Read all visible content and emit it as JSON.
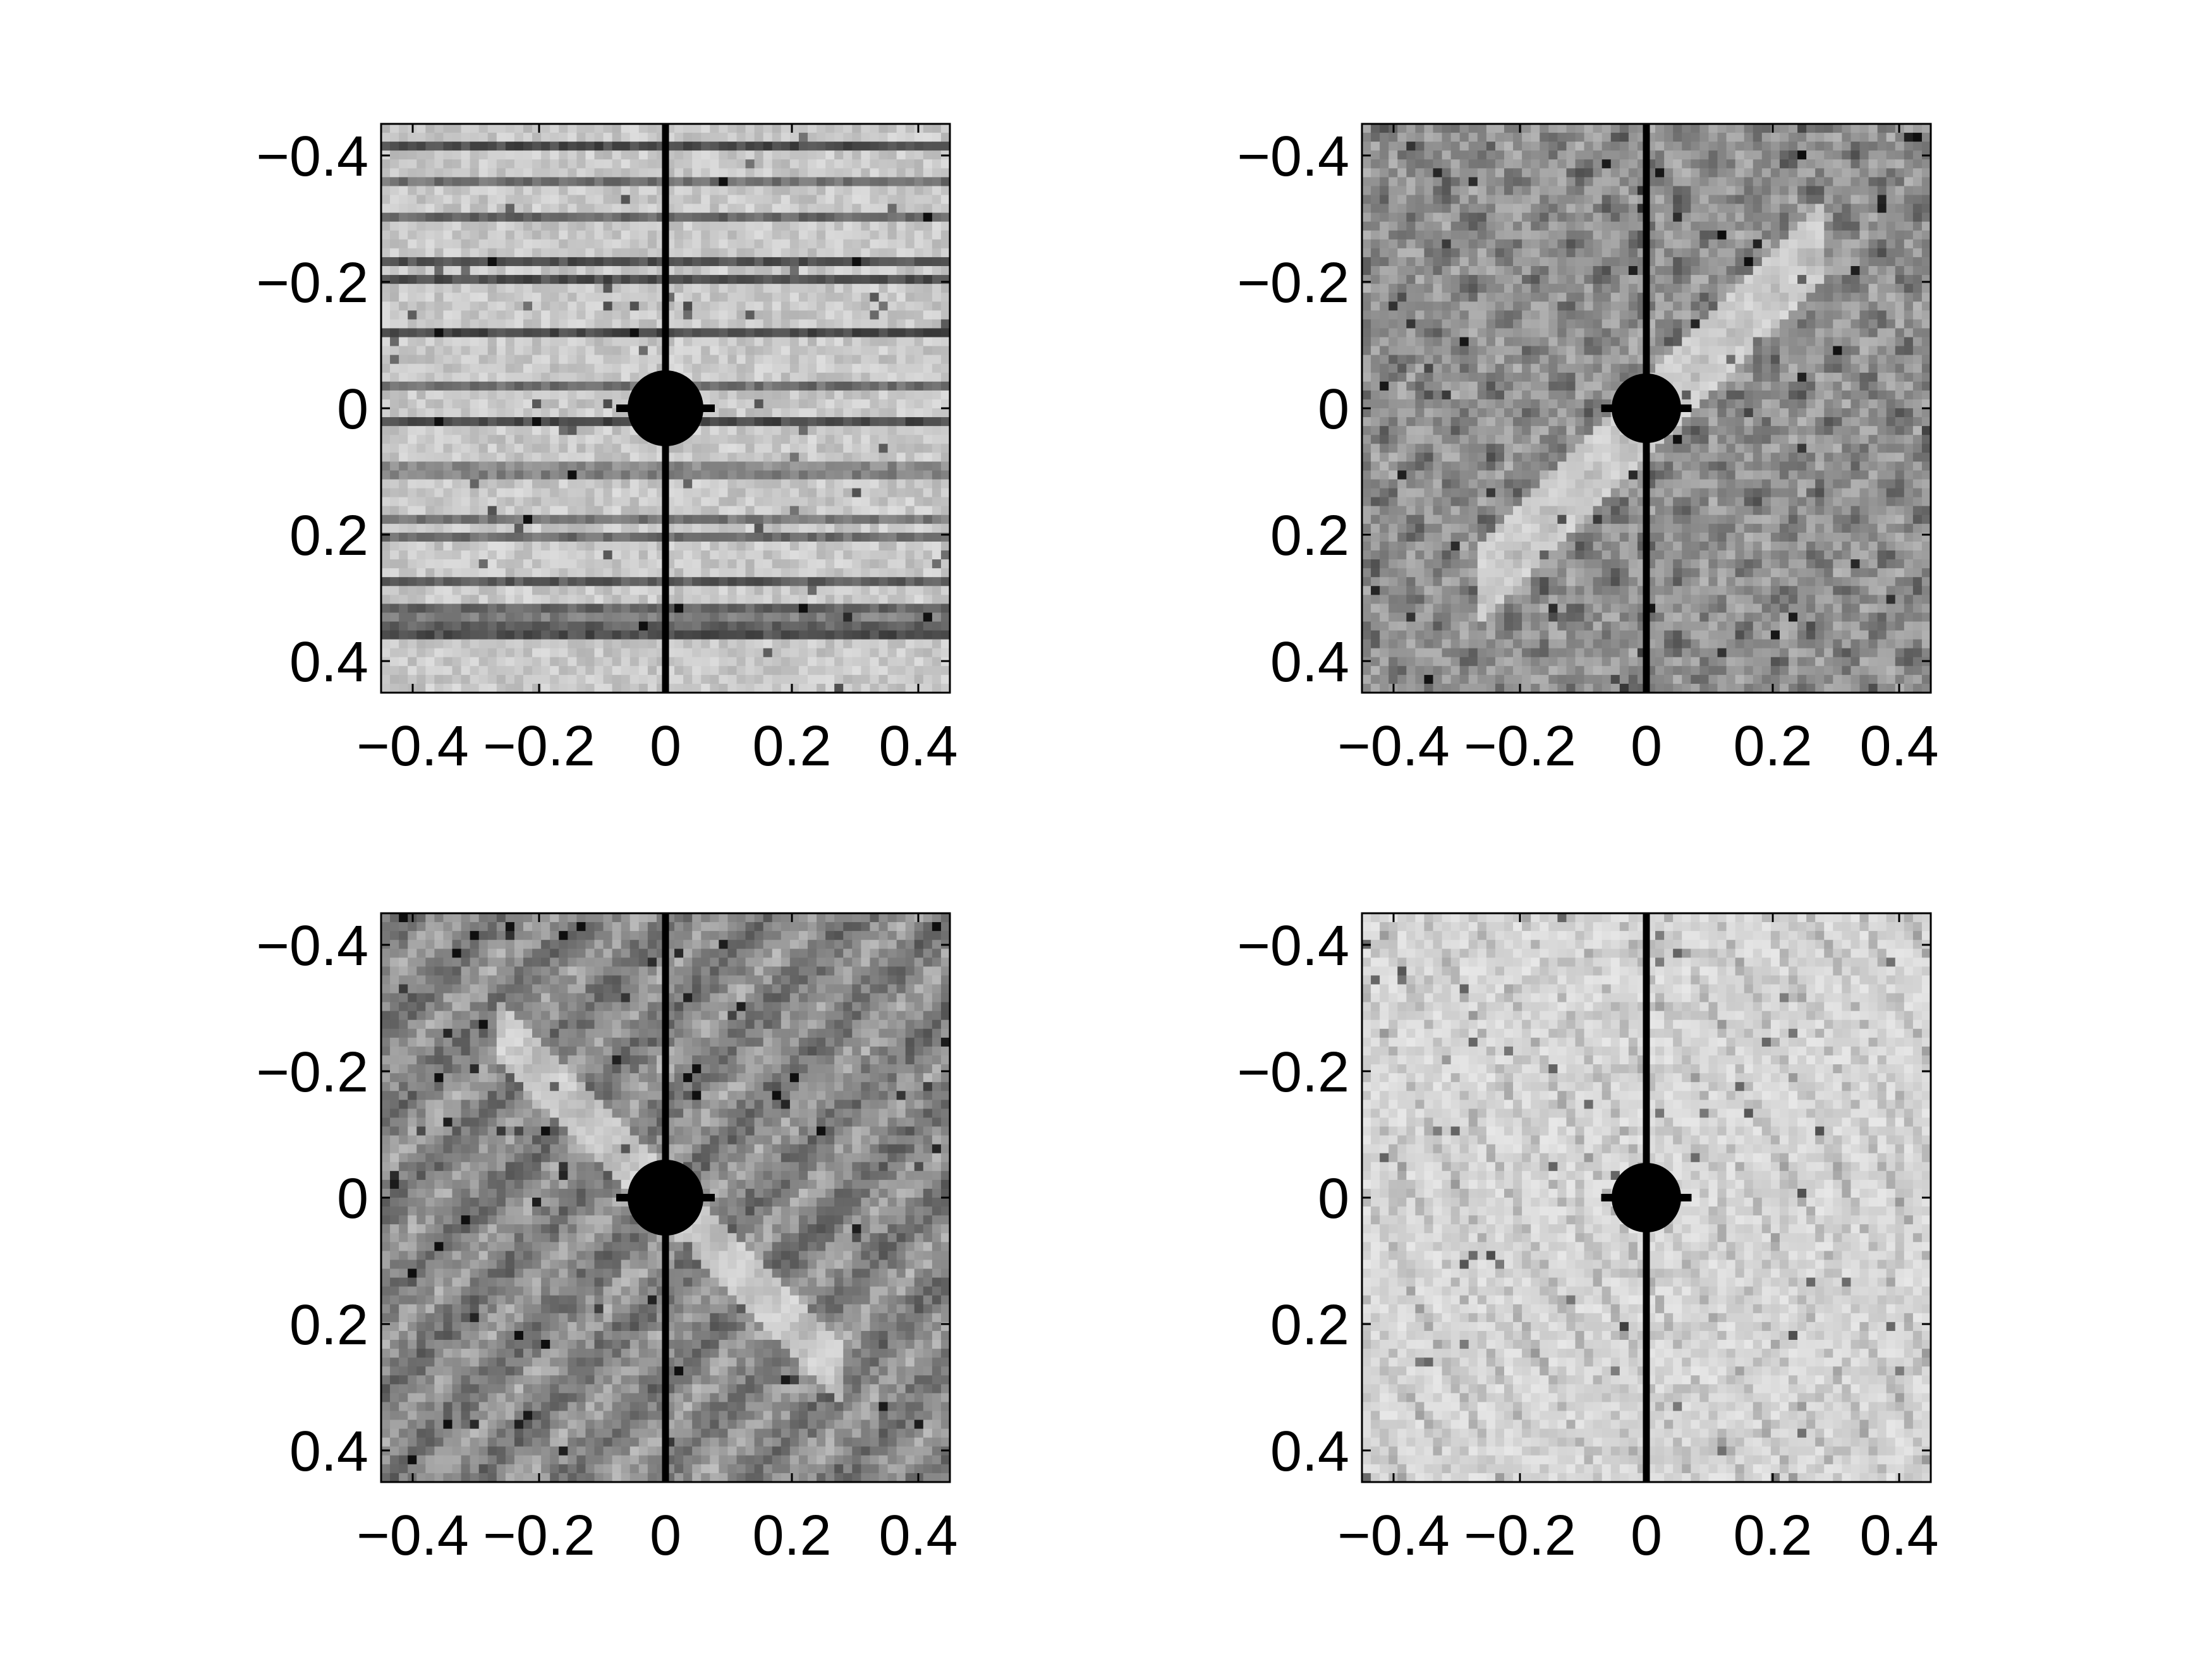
{
  "chart_data": [
    {
      "type": "heatmap",
      "colormap": "grayscale (light = low, dark = high)",
      "xlim": [
        -0.45,
        0.45
      ],
      "ylim": [
        -0.45,
        0.45
      ],
      "y_axis_direction": "reversed (negative at top)",
      "xticks": [
        -0.4,
        -0.2,
        0,
        0.2,
        0.4
      ],
      "yticks": [
        -0.4,
        -0.2,
        0,
        0.2,
        0.4
      ],
      "xtick_labels": [
        "−0.4",
        "−0.2",
        "0",
        "0.2",
        "0.4"
      ],
      "ytick_labels": [
        "−0.4",
        "−0.2",
        "0",
        "0.2",
        "0.4"
      ],
      "features": {
        "texture": "horizontal streaks",
        "central_disk_radius": 0.06,
        "vertical_line_at_x": 0
      }
    },
    {
      "type": "heatmap",
      "colormap": "grayscale (light = low, dark = high)",
      "xlim": [
        -0.45,
        0.45
      ],
      "ylim": [
        -0.45,
        0.45
      ],
      "y_axis_direction": "reversed (negative at top)",
      "xticks": [
        -0.4,
        -0.2,
        0,
        0.2,
        0.4
      ],
      "yticks": [
        -0.4,
        -0.2,
        0,
        0.2,
        0.4
      ],
      "xtick_labels": [
        "−0.4",
        "−0.2",
        "0",
        "0.2",
        "0.4"
      ],
      "ytick_labels": [
        "−0.4",
        "−0.2",
        "0",
        "0.2",
        "0.4"
      ],
      "features": {
        "texture": "diagonal crosshatch",
        "central_disk_radius": 0.055,
        "vertical_line_at_x": 0
      }
    },
    {
      "type": "heatmap",
      "colormap": "grayscale (light = low, dark = high)",
      "xlim": [
        -0.45,
        0.45
      ],
      "ylim": [
        -0.45,
        0.45
      ],
      "y_axis_direction": "reversed (negative at top)",
      "xticks": [
        -0.4,
        -0.2,
        0,
        0.2,
        0.4
      ],
      "yticks": [
        -0.4,
        -0.2,
        0,
        0.2,
        0.4
      ],
      "xtick_labels": [
        "−0.4",
        "−0.2",
        "0",
        "0.2",
        "0.4"
      ],
      "ytick_labels": [
        "−0.4",
        "−0.2",
        "0",
        "0.2",
        "0.4"
      ],
      "features": {
        "texture": "diagonal stripes",
        "central_disk_radius": 0.06,
        "vertical_line_at_x": 0
      }
    },
    {
      "type": "heatmap",
      "colormap": "grayscale (light = low, dark = high)",
      "xlim": [
        -0.45,
        0.45
      ],
      "ylim": [
        -0.45,
        0.45
      ],
      "y_axis_direction": "reversed (negative at top)",
      "xticks": [
        -0.4,
        -0.2,
        0,
        0.2,
        0.4
      ],
      "yticks": [
        -0.4,
        -0.2,
        0,
        0.2,
        0.4
      ],
      "xtick_labels": [
        "−0.4",
        "−0.2",
        "0",
        "0.2",
        "0.4"
      ],
      "ytick_labels": [
        "−0.4",
        "−0.2",
        "0",
        "0.2",
        "0.4"
      ],
      "features": {
        "texture": "light background with thin steep diagonal lines and rings",
        "central_disk_radius": 0.055,
        "vertical_line_at_x": 0
      }
    }
  ]
}
